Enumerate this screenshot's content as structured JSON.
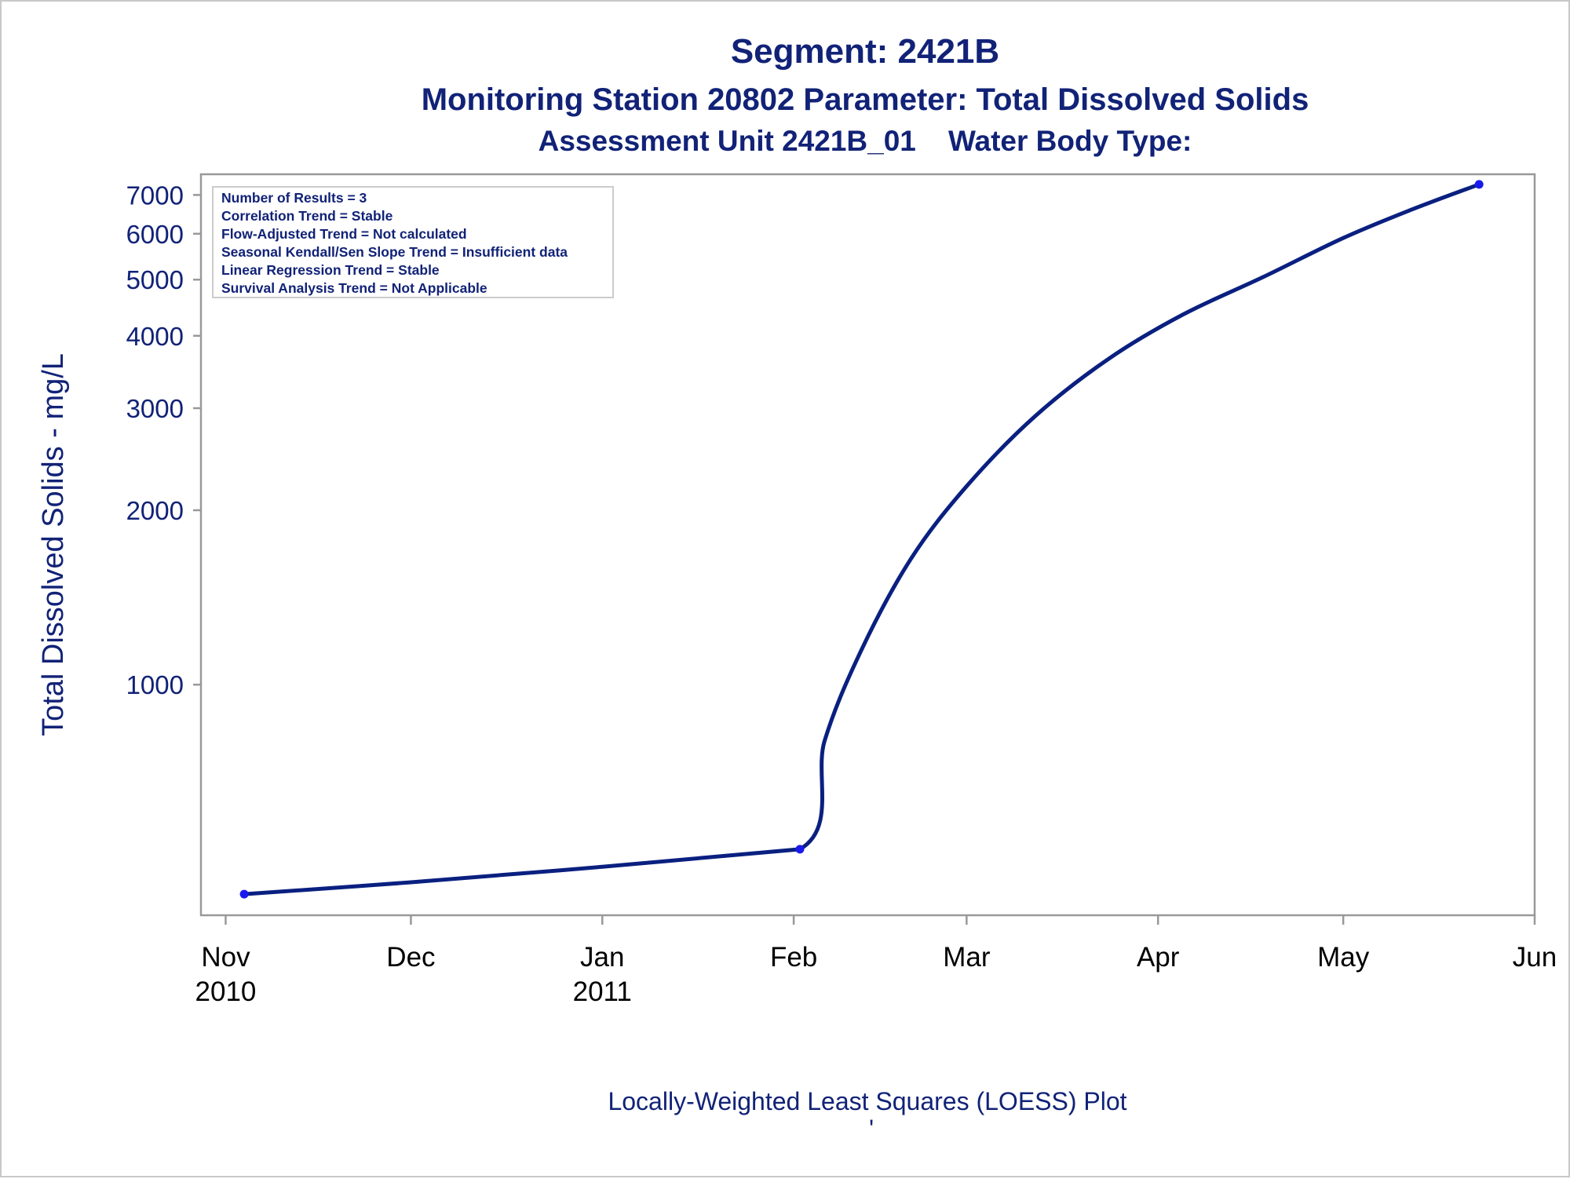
{
  "titles": {
    "line1": "Segment: 2421B",
    "line2": "Monitoring Station 20802 Parameter: Total Dissolved Solids",
    "line3": "Assessment Unit 2421B_01    Water Body Type:"
  },
  "footnote": {
    "text": "Locally-Weighted Least Squares (LOESS) Plot",
    "mark": "'"
  },
  "stats_box": [
    "Number of Results = 3",
    "Correlation Trend = Stable",
    "Flow-Adjusted Trend = Not calculated",
    "Seasonal Kendall/Sen Slope Trend = Insufficient data",
    "Linear Regression Trend = Stable",
    "Survival Analysis Trend = Not Applicable"
  ],
  "colors": {
    "text": "#112277",
    "line": "#0a2080",
    "point": "#1a1aee",
    "frame": "#999999"
  },
  "chart_data": {
    "type": "line",
    "y_scale": "log",
    "ylabel": "Total Dissolved Solids - mg/L",
    "y_ticks": [
      1000,
      2000,
      3000,
      4000,
      5000,
      6000,
      7000
    ],
    "ylim": [
      400,
      7600
    ],
    "xlim": [
      "2010-10-28",
      "2011-06-01"
    ],
    "x_ticks": [
      {
        "date": "2010-11-01",
        "label": "Nov",
        "sub": "2010"
      },
      {
        "date": "2010-12-01",
        "label": "Dec",
        "sub": ""
      },
      {
        "date": "2011-01-01",
        "label": "Jan",
        "sub": "2011"
      },
      {
        "date": "2011-02-01",
        "label": "Feb",
        "sub": ""
      },
      {
        "date": "2011-03-01",
        "label": "Mar",
        "sub": ""
      },
      {
        "date": "2011-04-01",
        "label": "Apr",
        "sub": ""
      },
      {
        "date": "2011-05-01",
        "label": "May",
        "sub": ""
      },
      {
        "date": "2011-06-01",
        "label": "Jun",
        "sub": ""
      }
    ],
    "observations": [
      {
        "date": "2010-11-04",
        "value": 435
      },
      {
        "date": "2011-02-02",
        "value": 520
      },
      {
        "date": "2011-05-23",
        "value": 7300
      }
    ],
    "series": [
      {
        "x": [
          "2010-11-04",
          "2010-12-01",
          "2011-01-01",
          "2011-02-02",
          "2011-02-06",
          "2011-02-12",
          "2011-02-20",
          "2011-03-01",
          "2011-03-12",
          "2011-03-24",
          "2011-04-05",
          "2011-04-18",
          "2011-05-01",
          "2011-05-12",
          "2011-05-23"
        ],
        "y": [
          435,
          456,
          485,
          520,
          800,
          1150,
          1650,
          2200,
          2900,
          3650,
          4350,
          5050,
          5900,
          6600,
          7300
        ]
      }
    ]
  }
}
